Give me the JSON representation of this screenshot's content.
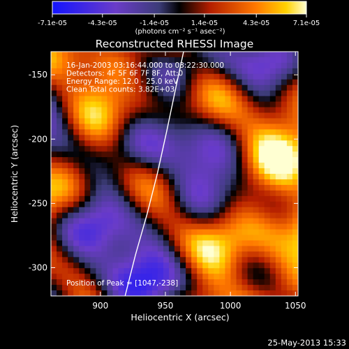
{
  "chart_data": {
    "type": "heatmap",
    "title": "Reconstructed RHESSI Image",
    "xlabel": "Heliocentric X (arcsec)",
    "ylabel": "Heliocentric Y (arcsec)",
    "xlim": [
      862,
      1052
    ],
    "ylim": [
      -322,
      -132
    ],
    "x_ticks": [
      900,
      950,
      1000,
      1050
    ],
    "y_ticks": [
      -150,
      -200,
      -250,
      -300
    ],
    "colorbar": {
      "range": [
        -7.1e-05,
        7.1e-05
      ],
      "tick_values": [
        -7.1e-05,
        -4.3e-05,
        -1.4e-05,
        1.4e-05,
        4.3e-05,
        7.1e-05
      ],
      "tick_labels": [
        "-7.1e-05",
        "-4.3e-05",
        "-1.4e-05",
        "1.4e-05",
        "4.3e-05",
        "7.1e-05"
      ],
      "units_label": "(photons cm⁻² s⁻¹ asec⁻²)"
    },
    "annotations": [
      "16-Jan-2003 03:16:44.000 to 03:22:30.000",
      "Detectors: 4F 5F 6F 7F 8F, Att:0",
      "Energy Range: 12.0 - 25.0 keV",
      "Clean    Total counts: 3.82E+03"
    ],
    "peak_label": "Position of Peak = ",
    "peak_value": "[1047,-238]",
    "peak_position": [
      1047,
      -238
    ],
    "limb_curve": [
      [
        919,
        -322
      ],
      [
        927,
        -290
      ],
      [
        936,
        -258
      ],
      [
        944,
        -226
      ],
      [
        951,
        -194
      ],
      [
        958,
        -160
      ],
      [
        964,
        -132
      ]
    ]
  },
  "footer": {
    "date": "25-May-2013 15:33"
  }
}
